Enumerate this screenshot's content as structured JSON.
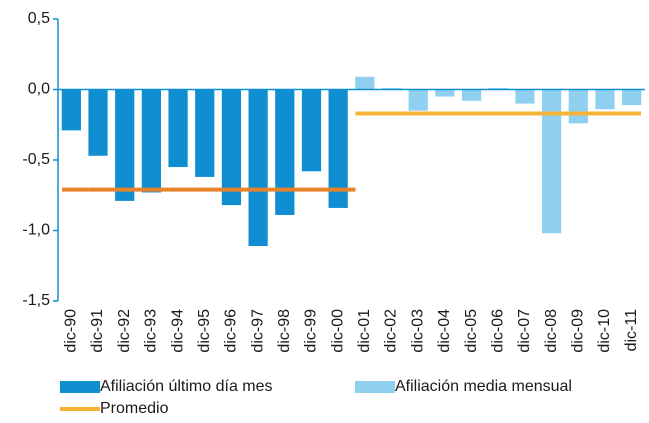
{
  "chart_data": {
    "type": "bar",
    "categories": [
      "dic-90",
      "dic-91",
      "dic-92",
      "dic-93",
      "dic-94",
      "dic-95",
      "dic-96",
      "dic-97",
      "dic-98",
      "dic-99",
      "dic-00",
      "dic-01",
      "dic-02",
      "dic-03",
      "dic-04",
      "dic-05",
      "dic-06",
      "dic-07",
      "dic-08",
      "dic-09",
      "dic-10",
      "dic-11"
    ],
    "series": [
      {
        "name": "Afiliación último día mes",
        "color": "#0f8fd1",
        "values": [
          -0.29,
          -0.47,
          -0.79,
          -0.73,
          -0.55,
          -0.62,
          -0.82,
          -1.11,
          -0.89,
          -0.58,
          -0.84,
          null,
          null,
          null,
          null,
          null,
          null,
          null,
          null,
          null,
          null,
          null
        ]
      },
      {
        "name": "Afiliación media mensual",
        "color": "#8fd0f0",
        "values": [
          null,
          null,
          null,
          null,
          null,
          null,
          null,
          null,
          null,
          null,
          null,
          0.09,
          0.01,
          -0.15,
          -0.05,
          -0.08,
          0.01,
          -0.1,
          -1.02,
          -0.24,
          -0.14,
          -0.11
        ]
      },
      {
        "name": "Promedio",
        "type": "line",
        "color": "#f5b335",
        "values": [
          -0.71,
          -0.71,
          -0.71,
          -0.71,
          -0.71,
          -0.71,
          -0.71,
          -0.71,
          -0.71,
          -0.71,
          -0.71,
          -0.17,
          -0.17,
          -0.17,
          -0.17,
          -0.17,
          -0.17,
          -0.17,
          -0.17,
          -0.17,
          -0.17,
          -0.17
        ],
        "value_colors": [
          "#e8832a",
          "#e8832a",
          "#e8832a",
          "#e8832a",
          "#e8832a",
          "#e8832a",
          "#e8832a",
          "#e8832a",
          "#e8832a",
          "#e8832a",
          "#e8832a",
          "#f5b335",
          "#f5b335",
          "#f5b335",
          "#f5b335",
          "#f5b335",
          "#f5b335",
          "#f5b335",
          "#f5b335",
          "#f5b335",
          "#f5b335",
          "#f5b335"
        ]
      }
    ],
    "ylim": [
      -1.5,
      0.5
    ],
    "yticks": [
      {
        "value": 0.5,
        "label": "0,5"
      },
      {
        "value": 0,
        "label": "0,0"
      },
      {
        "value": -0.5,
        "label": "-0,5"
      },
      {
        "value": -1,
        "label": "-1,0"
      },
      {
        "value": -1.5,
        "label": "-1,5"
      }
    ]
  }
}
